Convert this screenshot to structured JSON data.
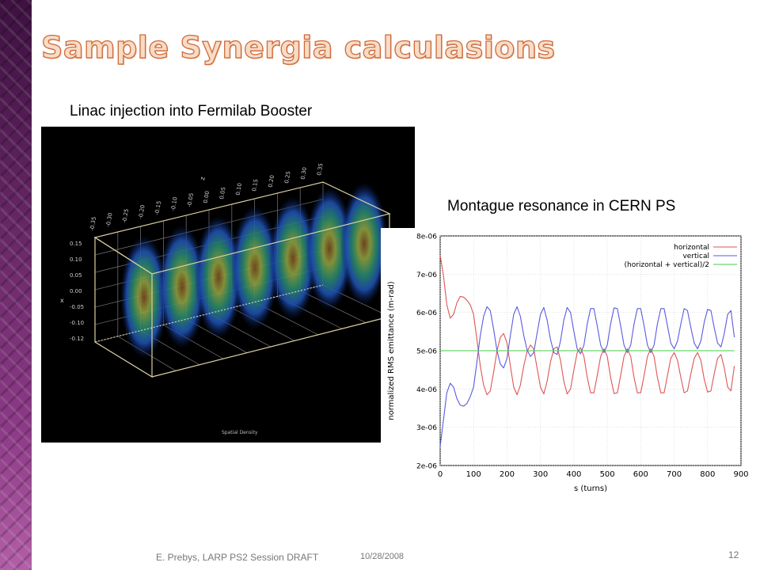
{
  "slide": {
    "title": "Sample Synergia calculasions",
    "left_caption": "Linac injection into Fermilab Booster",
    "right_caption": "Montague resonance in CERN PS",
    "booster_plot_label": "Spatial Density",
    "footer_author": "E. Prebys, LARP PS2 Session DRAFT",
    "footer_date": "10/28/2008",
    "page_number": "12"
  },
  "booster_axes": {
    "x_label": "x",
    "z_label": "z",
    "x_ticks": [
      "0.15",
      "0.10",
      "0.05",
      "0.00",
      "-0.05",
      "-0.10",
      "-0.12"
    ],
    "z_ticks": [
      "-0.35",
      "-0.30",
      "-0.25",
      "-0.20",
      "-0.15",
      "-0.10",
      "-0.05",
      "0.00",
      "0.05",
      "0.10",
      "0.15",
      "0.20",
      "0.25",
      "0.30",
      "0.35"
    ]
  },
  "chart_data": {
    "type": "line",
    "xlabel": "s (turns)",
    "ylabel": "normalized RMS emittance (m-rad)",
    "xlim": [
      0,
      900
    ],
    "ylim": [
      2e-06,
      8e-06
    ],
    "x_ticks": [
      "0",
      "100",
      "200",
      "300",
      "400",
      "500",
      "600",
      "700",
      "800",
      "900"
    ],
    "y_ticks": [
      "2e-06",
      "3e-06",
      "4e-06",
      "5e-06",
      "6e-06",
      "7e-06",
      "8e-06"
    ],
    "grid": true,
    "legend_position": "top-right",
    "series": [
      {
        "name": "horizontal",
        "color": "#e05555",
        "x": [
          0,
          10,
          20,
          30,
          40,
          50,
          60,
          70,
          80,
          90,
          100,
          110,
          120,
          130,
          140,
          150,
          160,
          170,
          180,
          190,
          200,
          210,
          220,
          230,
          240,
          250,
          260,
          270,
          280,
          290,
          300,
          310,
          320,
          330,
          340,
          350,
          360,
          370,
          380,
          390,
          400,
          410,
          420,
          430,
          440,
          450,
          460,
          470,
          480,
          490,
          500,
          510,
          520,
          530,
          540,
          550,
          560,
          570,
          580,
          590,
          600,
          610,
          620,
          630,
          640,
          650,
          660,
          670,
          680,
          690,
          700,
          710,
          720,
          730,
          740,
          750,
          760,
          770,
          780,
          790,
          800,
          810,
          820,
          830,
          840,
          850,
          860,
          870,
          880
        ],
        "y": [
          7.5e-06,
          6.96e-06,
          6.2e-06,
          5.85e-06,
          5.95e-06,
          6.25e-06,
          6.42e-06,
          6.4e-06,
          6.32e-06,
          6.2e-06,
          5.95e-06,
          5.3e-06,
          4.6e-06,
          4.1e-06,
          3.85e-06,
          3.95e-06,
          4.45e-06,
          5e-06,
          5.35e-06,
          5.45e-06,
          5.2e-06,
          4.6e-06,
          4.05e-06,
          3.85e-06,
          4.1e-06,
          4.6e-06,
          4.98e-06,
          5.15e-06,
          5.05e-06,
          4.55e-06,
          4.05e-06,
          3.87e-06,
          4.2e-06,
          4.7e-06,
          5.05e-06,
          5.1e-06,
          4.75e-06,
          4.2e-06,
          3.87e-06,
          4e-06,
          4.5e-06,
          4.95e-06,
          5.08e-06,
          4.85e-06,
          4.3e-06,
          3.9e-06,
          3.9e-06,
          4.35e-06,
          4.85e-06,
          5.05e-06,
          4.85e-06,
          4.3e-06,
          3.88e-06,
          3.9e-06,
          4.35e-06,
          4.85e-06,
          5.05e-06,
          4.85e-06,
          4.3e-06,
          3.9e-06,
          3.9e-06,
          4.35e-06,
          4.85e-06,
          5.05e-06,
          4.85e-06,
          4.3e-06,
          3.9e-06,
          3.9e-06,
          4.35e-06,
          4.8e-06,
          4.95e-06,
          4.75e-06,
          4.3e-06,
          3.9e-06,
          3.95e-06,
          4.4e-06,
          4.8e-06,
          4.95e-06,
          4.75e-06,
          4.25e-06,
          3.92e-06,
          3.95e-06,
          4.4e-06,
          4.8e-06,
          4.9e-06,
          4.55e-06,
          4.05e-06,
          3.95e-06,
          4.6e-06
        ]
      },
      {
        "name": "vertical",
        "color": "#5a5ae0",
        "x": [
          0,
          10,
          20,
          30,
          40,
          50,
          60,
          70,
          80,
          90,
          100,
          110,
          120,
          130,
          140,
          150,
          160,
          170,
          180,
          190,
          200,
          210,
          220,
          230,
          240,
          250,
          260,
          270,
          280,
          290,
          300,
          310,
          320,
          330,
          340,
          350,
          360,
          370,
          380,
          390,
          400,
          410,
          420,
          430,
          440,
          450,
          460,
          470,
          480,
          490,
          500,
          510,
          520,
          530,
          540,
          550,
          560,
          570,
          580,
          590,
          600,
          610,
          620,
          630,
          640,
          650,
          660,
          670,
          680,
          690,
          700,
          710,
          720,
          730,
          740,
          750,
          760,
          770,
          780,
          790,
          800,
          810,
          820,
          830,
          840,
          850,
          860,
          870,
          880
        ],
        "y": [
          2.5e-06,
          3.2e-06,
          3.9e-06,
          4.15e-06,
          4.05e-06,
          3.75e-06,
          3.58e-06,
          3.55e-06,
          3.62e-06,
          3.8e-06,
          4.05e-06,
          4.7e-06,
          5.4e-06,
          5.9e-06,
          6.15e-06,
          6.05e-06,
          5.55e-06,
          5e-06,
          4.65e-06,
          4.55e-06,
          4.8e-06,
          5.4e-06,
          5.95e-06,
          6.15e-06,
          5.9e-06,
          5.4e-06,
          5.02e-06,
          4.85e-06,
          4.95e-06,
          5.45e-06,
          5.95e-06,
          6.13e-06,
          5.8e-06,
          5.3e-06,
          4.95e-06,
          4.9e-06,
          5.25e-06,
          5.8e-06,
          6.13e-06,
          6e-06,
          5.5e-06,
          5.05e-06,
          4.92e-06,
          5.15e-06,
          5.7e-06,
          6.1e-06,
          6.1e-06,
          5.65e-06,
          5.15e-06,
          4.95e-06,
          5.15e-06,
          5.7e-06,
          6.12e-06,
          6.1e-06,
          5.65e-06,
          5.15e-06,
          4.95e-06,
          5.15e-06,
          5.7e-06,
          6.1e-06,
          6.1e-06,
          5.65e-06,
          5.15e-06,
          4.95e-06,
          5.15e-06,
          5.7e-06,
          6.1e-06,
          6.1e-06,
          5.65e-06,
          5.2e-06,
          5.05e-06,
          5.25e-06,
          5.7e-06,
          6.1e-06,
          6.05e-06,
          5.6e-06,
          5.2e-06,
          5.05e-06,
          5.25e-06,
          5.75e-06,
          6.08e-06,
          6.05e-06,
          5.6e-06,
          5.2e-06,
          5.1e-06,
          5.45e-06,
          5.95e-06,
          6.05e-06,
          5.35e-06
        ]
      },
      {
        "name": "(horizontal + vertical)/2",
        "color": "#44cc44",
        "x": [
          0,
          880
        ],
        "y": [
          5e-06,
          5e-06
        ]
      }
    ]
  }
}
